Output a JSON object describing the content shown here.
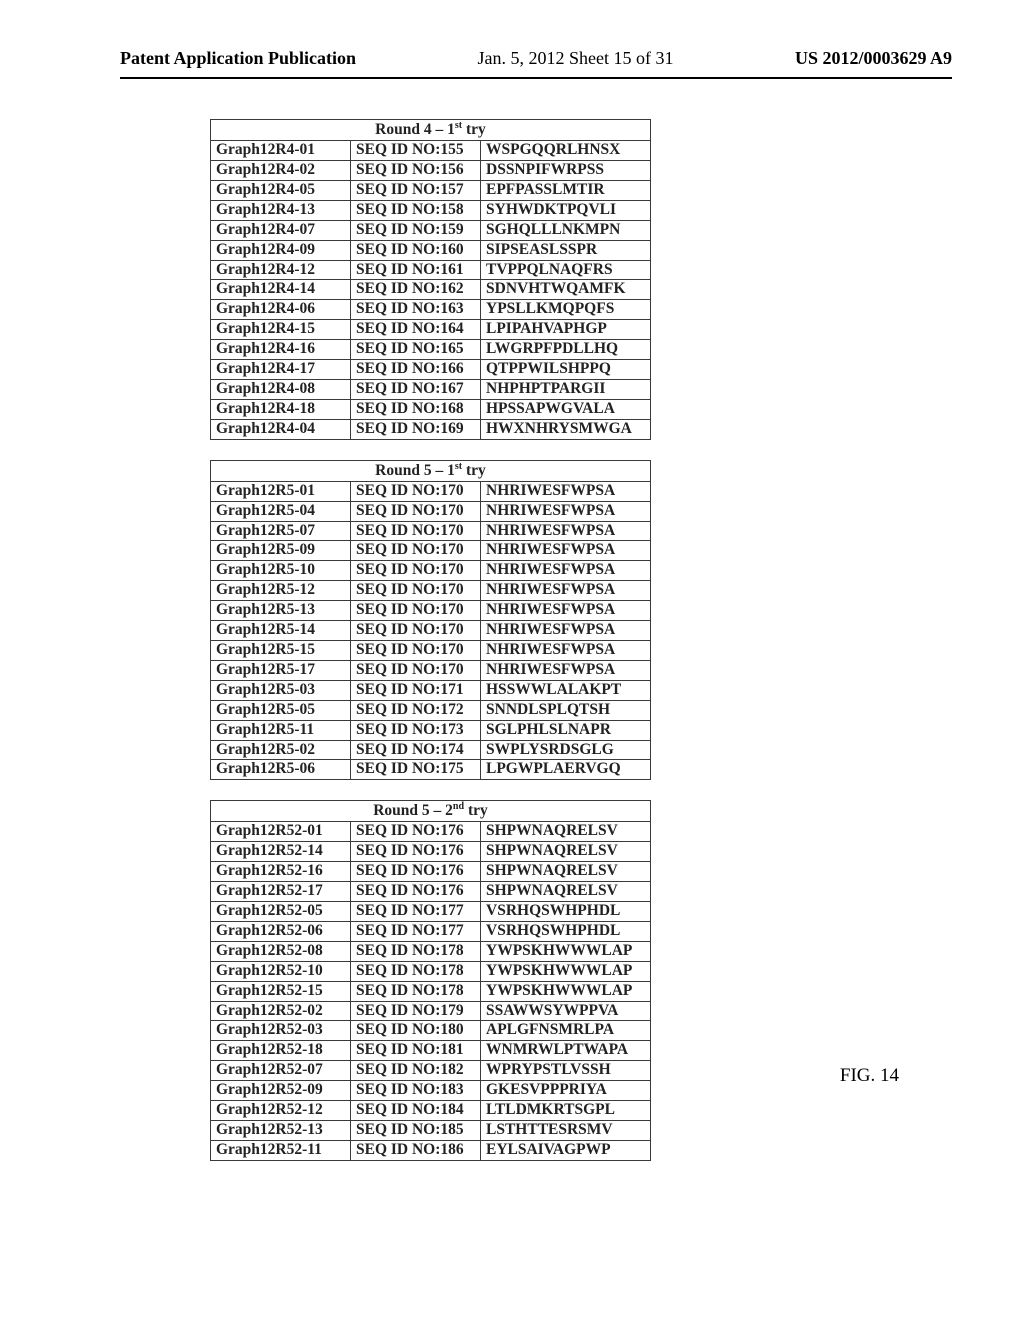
{
  "header": {
    "left": "Patent Application Publication",
    "mid": "Jan. 5, 2012   Sheet 15 of 31",
    "right": "US 2012/0003629 A9"
  },
  "figLabel": "FIG. 14",
  "tables": [
    {
      "title_prefix": "Round 4 – 1",
      "title_super": "st",
      "title_suffix": " try",
      "col_widths": [
        "col-a",
        "col-b",
        "col-c"
      ],
      "rows": [
        [
          "Graph12R4-01",
          "SEQ ID NO:155",
          "WSPGQQRLHNSX"
        ],
        [
          "Graph12R4-02",
          "SEQ ID NO:156",
          "DSSNPIFWRPSS"
        ],
        [
          "Graph12R4-05",
          "SEQ ID NO:157",
          "EPFPASSLMTIR"
        ],
        [
          "Graph12R4-13",
          "SEQ ID NO:158",
          "SYHWDKTPQVLI"
        ],
        [
          "Graph12R4-07",
          "SEQ ID NO:159",
          "SGHQLLLNKMPN"
        ],
        [
          "Graph12R4-09",
          "SEQ ID NO:160",
          "SIPSEASLSSPR"
        ],
        [
          "Graph12R4-12",
          "SEQ ID NO:161",
          "TVPPQLNAQFRS"
        ],
        [
          "Graph12R4-14",
          "SEQ ID NO:162",
          "SDNVHTWQAMFK"
        ],
        [
          "Graph12R4-06",
          "SEQ ID NO:163",
          "YPSLLKMQPQFS"
        ],
        [
          "Graph12R4-15",
          "SEQ ID NO:164",
          "LPIPAHVAPHGP"
        ],
        [
          "Graph12R4-16",
          "SEQ ID NO:165",
          "LWGRPFPDLLHQ"
        ],
        [
          "Graph12R4-17",
          "SEQ ID NO:166",
          "QTPPWILSHPPQ"
        ],
        [
          "Graph12R4-08",
          "SEQ ID NO:167",
          "NHPHPTPARGII"
        ],
        [
          "Graph12R4-18",
          "SEQ ID NO:168",
          "HPSSAPWGVALA"
        ],
        [
          "Graph12R4-04",
          "SEQ ID NO:169",
          "HWXNHRYSMWGA"
        ]
      ]
    },
    {
      "title_prefix": "Round 5 – 1",
      "title_super": "st",
      "title_suffix": " try",
      "col_widths": [
        "col-a",
        "col-b",
        "col-c"
      ],
      "rows": [
        [
          "Graph12R5-01",
          "SEQ ID NO:170",
          "NHRIWESFWPSA"
        ],
        [
          "Graph12R5-04",
          "SEQ ID NO:170",
          "NHRIWESFWPSA"
        ],
        [
          "Graph12R5-07",
          "SEQ ID NO:170",
          "NHRIWESFWPSA"
        ],
        [
          "Graph12R5-09",
          "SEQ ID NO:170",
          "NHRIWESFWPSA"
        ],
        [
          "Graph12R5-10",
          "SEQ ID NO:170",
          "NHRIWESFWPSA"
        ],
        [
          "Graph12R5-12",
          "SEQ ID NO:170",
          "NHRIWESFWPSA"
        ],
        [
          "Graph12R5-13",
          "SEQ ID NO:170",
          "NHRIWESFWPSA"
        ],
        [
          "Graph12R5-14",
          "SEQ ID NO:170",
          "NHRIWESFWPSA"
        ],
        [
          "Graph12R5-15",
          "SEQ ID NO:170",
          "NHRIWESFWPSA"
        ],
        [
          "Graph12R5-17",
          "SEQ ID NO:170",
          "NHRIWESFWPSA"
        ],
        [
          "Graph12R5-03",
          "SEQ ID NO:171",
          "HSSWWLALAKPT"
        ],
        [
          "Graph12R5-05",
          "SEQ ID NO:172",
          "SNNDLSPLQTSH"
        ],
        [
          "Graph12R5-11",
          "SEQ ID NO:173",
          "SGLPHLSLNAPR"
        ],
        [
          "Graph12R5-02",
          "SEQ ID NO:174",
          "SWPLYSRDSGLG"
        ],
        [
          "Graph12R5-06",
          "SEQ ID NO:175",
          "LPGWPLAERVGQ"
        ]
      ]
    },
    {
      "title_prefix": "Round 5 – 2",
      "title_super": "nd",
      "title_suffix": " try",
      "col_widths": [
        "col-a",
        "col-b",
        "col-c"
      ],
      "rows": [
        [
          "Graph12R52-01",
          "SEQ ID NO:176",
          "SHPWNAQRELSV"
        ],
        [
          "Graph12R52-14",
          "SEQ ID NO:176",
          "SHPWNAQRELSV"
        ],
        [
          "Graph12R52-16",
          "SEQ ID NO:176",
          "SHPWNAQRELSV"
        ],
        [
          "Graph12R52-17",
          "SEQ ID NO:176",
          "SHPWNAQRELSV"
        ],
        [
          "Graph12R52-05",
          "SEQ ID NO:177",
          "VSRHQSWHPHDL"
        ],
        [
          "Graph12R52-06",
          "SEQ ID NO:177",
          "VSRHQSWHPHDL"
        ],
        [
          "Graph12R52-08",
          "SEQ ID NO:178",
          "YWPSKHWWWLAP"
        ],
        [
          "Graph12R52-10",
          "SEQ ID NO:178",
          "YWPSKHWWWLAP"
        ],
        [
          "Graph12R52-15",
          "SEQ ID NO:178",
          "YWPSKHWWWLAP"
        ],
        [
          "Graph12R52-02",
          "SEQ ID NO:179",
          "SSAWWSYWPPVA"
        ],
        [
          "Graph12R52-03",
          "SEQ ID NO:180",
          "APLGFNSMRLPA"
        ],
        [
          "Graph12R52-18",
          "SEQ ID NO:181",
          "WNMRWLPTWAPA"
        ],
        [
          "Graph12R52-07",
          "SEQ ID NO:182",
          "WPRYPSTLVSSH"
        ],
        [
          "Graph12R52-09",
          "SEQ ID NO:183",
          "GKESVPPPRIYA"
        ],
        [
          "Graph12R52-12",
          "SEQ ID NO:184",
          "LTLDMKRTSGPL"
        ],
        [
          "Graph12R52-13",
          "SEQ ID NO:185",
          "LSTHTTESRSMV"
        ],
        [
          "Graph12R52-11",
          "SEQ ID NO:186",
          "EYLSAIVAGPWP"
        ]
      ]
    }
  ]
}
